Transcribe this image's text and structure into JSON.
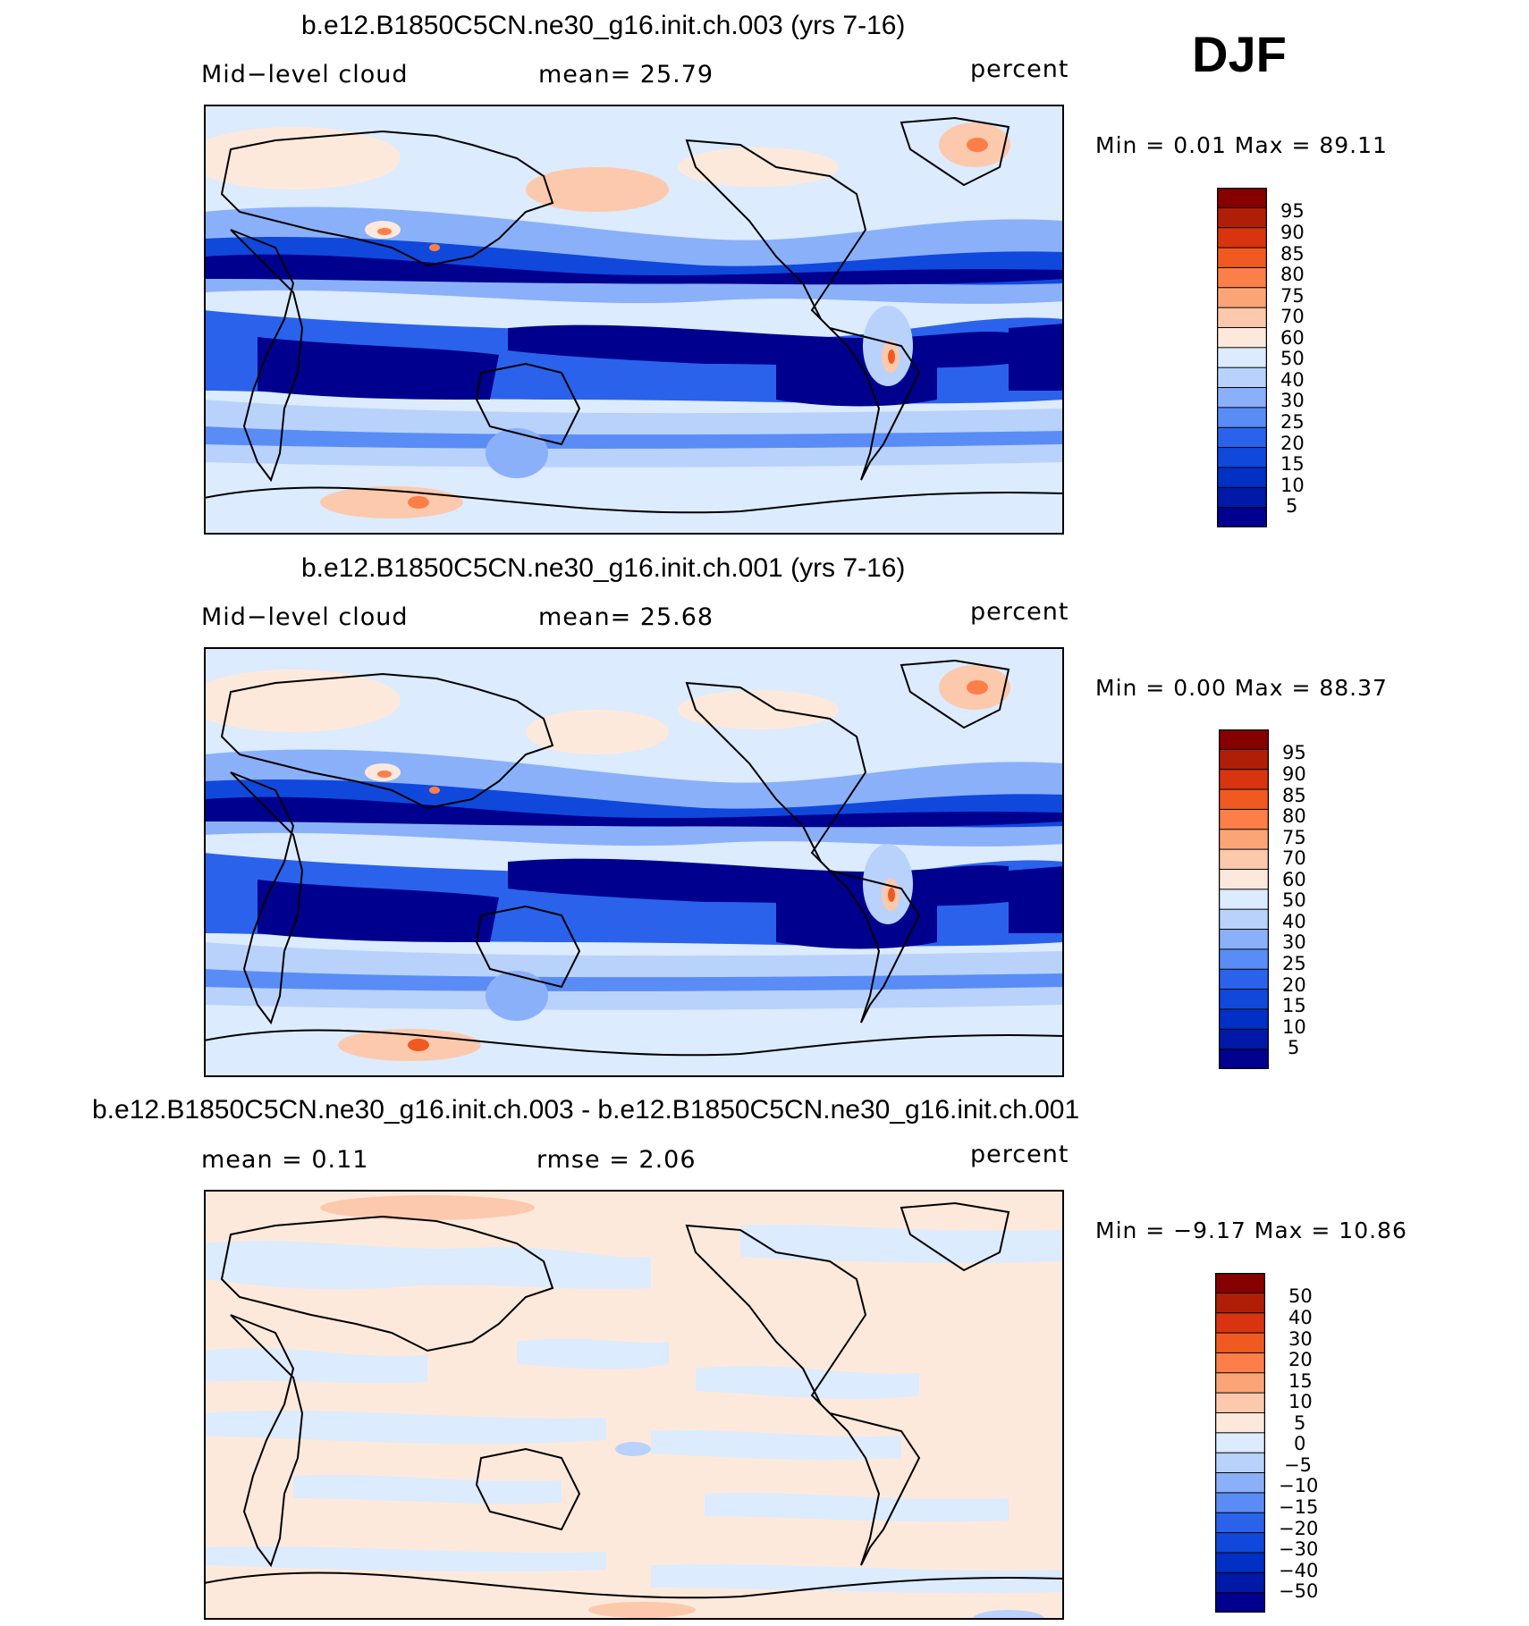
{
  "season": "DJF",
  "colors": {
    "abs": [
      "#00008f",
      "#0019a8",
      "#0030c4",
      "#1048dc",
      "#2a62ec",
      "#5a8cf6",
      "#8bb0fa",
      "#b8d2fc",
      "#dcebfd",
      "#fde9dc",
      "#fcc9ad",
      "#fba577",
      "#fc7e48",
      "#f05a20",
      "#d83410",
      "#b01e08",
      "#870000"
    ],
    "diff": [
      "#00008f",
      "#0019a8",
      "#0030c4",
      "#1048dc",
      "#2a62ec",
      "#5a8cf6",
      "#8bb0fa",
      "#b8d2fc",
      "#dcebfd",
      "#fde9dc",
      "#fcc9ad",
      "#fba577",
      "#fc7e48",
      "#f05a20",
      "#d83410",
      "#b01e08",
      "#870000"
    ]
  },
  "panels": [
    {
      "title": "b.e12.B1850C5CN.ne30_g16.init.ch.003 (yrs 7-16)",
      "left_label": "Mid−level cloud",
      "center_label": "mean=   25.79",
      "units": "percent",
      "minmax": "Min =    0.01  Max =   89.11",
      "levels": [
        "95",
        "90",
        "85",
        "80",
        "75",
        "70",
        "60",
        "50",
        "40",
        "30",
        "25",
        "20",
        "15",
        "10",
        "5"
      ]
    },
    {
      "title": "b.e12.B1850C5CN.ne30_g16.init.ch.001 (yrs 7-16)",
      "left_label": "Mid−level cloud",
      "center_label": "mean=   25.68",
      "units": "percent",
      "minmax": "Min =    0.00  Max =   88.37",
      "levels": [
        "95",
        "90",
        "85",
        "80",
        "75",
        "70",
        "60",
        "50",
        "40",
        "30",
        "25",
        "20",
        "15",
        "10",
        "5"
      ]
    },
    {
      "title": "b.e12.B1850C5CN.ne30_g16.init.ch.003 - b.e12.B1850C5CN.ne30_g16.init.ch.001",
      "left_label": "mean =    0.11",
      "center_label": "rmse =    2.06",
      "units": "percent",
      "minmax": "Min =  −9.17  Max =   10.86",
      "levels": [
        "50",
        "40",
        "30",
        "20",
        "15",
        "10",
        "5",
        "0",
        "−5",
        "−10",
        "−15",
        "−20",
        "−30",
        "−40",
        "−50"
      ]
    }
  ]
}
